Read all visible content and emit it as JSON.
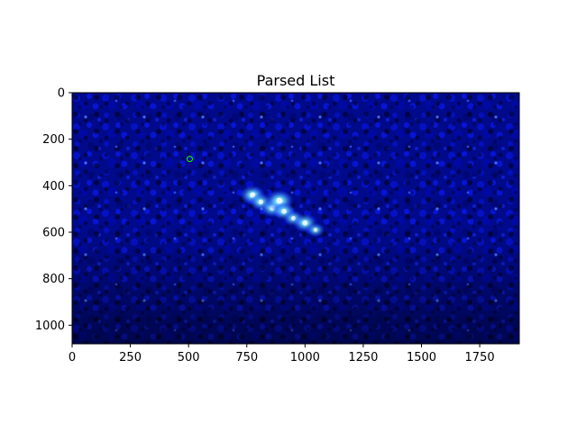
{
  "chart_data": {
    "type": "heatmap",
    "title": "Parsed List",
    "xlabel": "",
    "ylabel": "",
    "xlim": [
      0,
      1920
    ],
    "ylim": [
      1080,
      0
    ],
    "x_ticks": [
      0,
      250,
      500,
      750,
      1000,
      1250,
      1500,
      1750
    ],
    "y_ticks": [
      0,
      200,
      400,
      600,
      800,
      1000
    ],
    "grid": false,
    "legend": "none",
    "colormap": "black-to-blue-to-cyan",
    "background_color": "#000010",
    "base_color": "#0a0ad0",
    "highlight_color": "#7fe8ff",
    "marker": {
      "type": "circle",
      "color": "#00ff00",
      "x": 505,
      "y": 285
    },
    "bright_regions": [
      {
        "x": 775,
        "y": 440,
        "intensity": 0.85
      },
      {
        "x": 810,
        "y": 470,
        "intensity": 0.7
      },
      {
        "x": 860,
        "y": 495,
        "intensity": 0.8
      },
      {
        "x": 890,
        "y": 465,
        "intensity": 1.0
      },
      {
        "x": 910,
        "y": 510,
        "intensity": 0.75
      },
      {
        "x": 950,
        "y": 540,
        "intensity": 0.6
      },
      {
        "x": 1000,
        "y": 560,
        "intensity": 0.8
      },
      {
        "x": 1045,
        "y": 590,
        "intensity": 0.5
      }
    ]
  }
}
